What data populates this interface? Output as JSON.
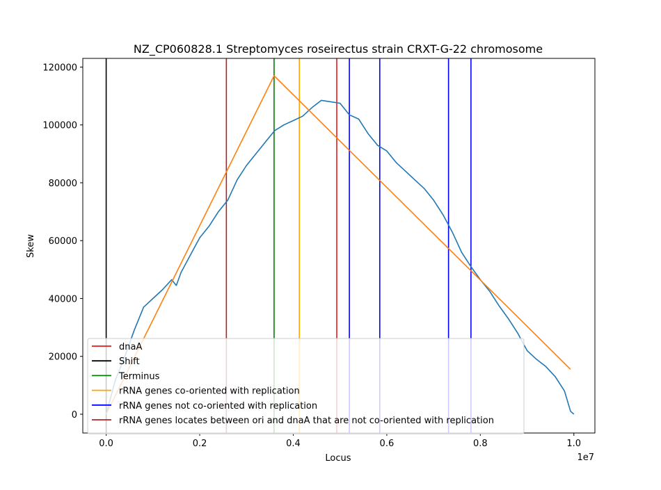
{
  "chart_data": {
    "type": "line",
    "title": "NZ_CP060828.1 Streptomyces roseirectus strain CRXT-G-22 chromosome",
    "xlabel": "Locus",
    "ylabel": "Skew",
    "x_offset_label": "1e7",
    "xlim": [
      -0.05,
      1.045
    ],
    "ylim": [
      -6500,
      123000
    ],
    "x_ticks": [
      0.0,
      0.2,
      0.4,
      0.6,
      0.8,
      1.0
    ],
    "x_tick_labels": [
      "0.0",
      "0.2",
      "0.4",
      "0.6",
      "0.8",
      "1.0"
    ],
    "y_ticks": [
      0,
      20000,
      40000,
      60000,
      80000,
      100000,
      120000
    ],
    "y_tick_labels": [
      "0",
      "20000",
      "40000",
      "60000",
      "80000",
      "100000",
      "120000"
    ],
    "grid": false,
    "legend_placement": "lower-left",
    "series": [
      {
        "color": "#1f77b4",
        "x": [
          0.0,
          0.02,
          0.04,
          0.06,
          0.08,
          0.1,
          0.12,
          0.14,
          0.15,
          0.16,
          0.18,
          0.2,
          0.22,
          0.24,
          0.26,
          0.28,
          0.3,
          0.32,
          0.34,
          0.36,
          0.38,
          0.4,
          0.42,
          0.44,
          0.46,
          0.48,
          0.5,
          0.52,
          0.54,
          0.56,
          0.58,
          0.6,
          0.62,
          0.64,
          0.66,
          0.68,
          0.7,
          0.72,
          0.74,
          0.76,
          0.78,
          0.8,
          0.82,
          0.84,
          0.86,
          0.88,
          0.9,
          0.92,
          0.94,
          0.96,
          0.98,
          0.993,
          1.0
        ],
        "y": [
          0,
          12000,
          20000,
          29000,
          37000,
          40000,
          43000,
          46500,
          44500,
          49000,
          55000,
          61000,
          65000,
          70000,
          74000,
          81000,
          86000,
          90000,
          94000,
          98000,
          100000,
          101500,
          103000,
          106000,
          108500,
          108000,
          107500,
          103500,
          102000,
          97000,
          93000,
          91000,
          87000,
          84000,
          81000,
          78000,
          74000,
          69000,
          63000,
          56000,
          51000,
          46500,
          42500,
          37500,
          33000,
          28000,
          22000,
          19000,
          16500,
          13000,
          8000,
          1000,
          0
        ]
      },
      {
        "color": "#ff7f0e",
        "x": [
          0.0,
          0.359,
          0.993
        ],
        "y": [
          0,
          117000,
          15500
        ]
      }
    ],
    "vlines": [
      {
        "x": 0.0,
        "color": "#000000"
      },
      {
        "x": 0.257,
        "color": "#b22222"
      },
      {
        "x": 0.359,
        "color": "#008000"
      },
      {
        "x": 0.413,
        "color": "#ffa500"
      },
      {
        "x": 0.493,
        "color": "#e41a1c"
      },
      {
        "x": 0.52,
        "color": "#0000ff"
      },
      {
        "x": 0.585,
        "color": "#0000ff"
      },
      {
        "x": 0.732,
        "color": "#0000ff"
      },
      {
        "x": 0.78,
        "color": "#0000ff"
      }
    ],
    "legend": [
      {
        "label": "dnaA",
        "color": "#e41a1c"
      },
      {
        "label": "Shift",
        "color": "#000000"
      },
      {
        "label": "Terminus",
        "color": "#008000"
      },
      {
        "label": "rRNA genes co-oriented with replication",
        "color": "#ffa500"
      },
      {
        "label": "rRNA genes not co-oriented with replication",
        "color": "#0000ff"
      },
      {
        "label": "rRNA genes locates between ori and dnaA that are not co-oriented with replication",
        "color": "#b22222"
      }
    ]
  }
}
